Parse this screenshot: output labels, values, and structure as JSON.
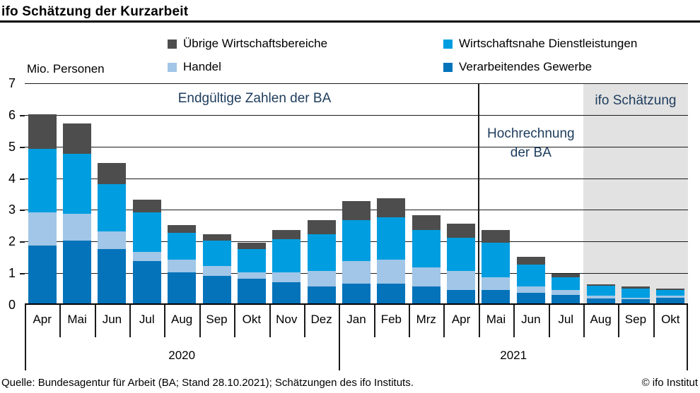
{
  "title": "ifo Schätzung der Kurzarbeit",
  "y_axis": {
    "unit_label": "Mio. Personen",
    "min": 0,
    "max": 7,
    "ticks": [
      0,
      1,
      2,
      3,
      4,
      5,
      6,
      7
    ]
  },
  "legend": [
    {
      "key": "uebrige",
      "label": "Übrige Wirtschaftsbereiche",
      "color": "#4d4d4d"
    },
    {
      "key": "wnd",
      "label": "Wirtschaftsnahe Dienstleistungen",
      "color": "#009ee0"
    },
    {
      "key": "handel",
      "label": "Handel",
      "color": "#a1c6e7"
    },
    {
      "key": "vg",
      "label": "Verarbeitendes Gewerbe",
      "color": "#0473ba"
    }
  ],
  "annotations": {
    "final_figures": "Endgültige Zahlen der BA",
    "extrapolation_line1": "Hochrechnung",
    "extrapolation_line2": "der BA",
    "ifo_estimate": "ifo Schätzung"
  },
  "footer": {
    "source": "Quelle: Bundesagentur für Arbeit (BA; Stand 28.10.2021); Schätzungen des ifo Instituts.",
    "copyright": "© ifo Institut"
  },
  "chart_data": {
    "type": "bar",
    "stacked": true,
    "title": "ifo Schätzung der Kurzarbeit",
    "ylabel": "Mio. Personen",
    "ylim": [
      0,
      7
    ],
    "grid": true,
    "legend_position": "top",
    "categories": [
      "Apr",
      "Mai",
      "Jun",
      "Jul",
      "Aug",
      "Sep",
      "Okt",
      "Nov",
      "Dez",
      "Jan",
      "Feb",
      "Mrz",
      "Apr",
      "Mai",
      "Jun",
      "Jul",
      "Aug",
      "Sep",
      "Okt"
    ],
    "year_groups": [
      {
        "label": "2020",
        "months": 9
      },
      {
        "label": "2021",
        "months": 10
      }
    ],
    "series": [
      {
        "key": "vg",
        "name": "Verarbeitendes Gewerbe",
        "color": "#0473ba",
        "values": [
          1.85,
          2.0,
          1.75,
          1.35,
          1.0,
          0.9,
          0.8,
          0.7,
          0.55,
          0.65,
          0.65,
          0.55,
          0.45,
          0.45,
          0.35,
          0.3,
          0.18,
          0.15,
          0.2
        ]
      },
      {
        "key": "handel",
        "name": "Handel",
        "color": "#a1c6e7",
        "values": [
          1.05,
          0.85,
          0.55,
          0.3,
          0.4,
          0.3,
          0.2,
          0.3,
          0.5,
          0.7,
          0.75,
          0.6,
          0.6,
          0.4,
          0.2,
          0.15,
          0.08,
          0.06,
          0.06
        ]
      },
      {
        "key": "wnd",
        "name": "Wirtschaftsnahe Dienstleistungen",
        "color": "#009ee0",
        "values": [
          2.0,
          1.9,
          1.5,
          1.25,
          0.85,
          0.8,
          0.75,
          1.05,
          1.15,
          1.3,
          1.35,
          1.2,
          1.05,
          1.1,
          0.7,
          0.4,
          0.32,
          0.29,
          0.19
        ]
      },
      {
        "key": "uebrige",
        "name": "Übrige Wirtschaftsbereiche",
        "color": "#4d4d4d",
        "values": [
          1.1,
          0.95,
          0.65,
          0.4,
          0.25,
          0.2,
          0.2,
          0.3,
          0.45,
          0.6,
          0.6,
          0.45,
          0.45,
          0.4,
          0.25,
          0.1,
          0.05,
          0.05,
          0.05
        ]
      }
    ],
    "regions": {
      "divider_after_index": 12,
      "shaded_from_index": 16,
      "shaded_color": "#e2e2e2"
    }
  }
}
